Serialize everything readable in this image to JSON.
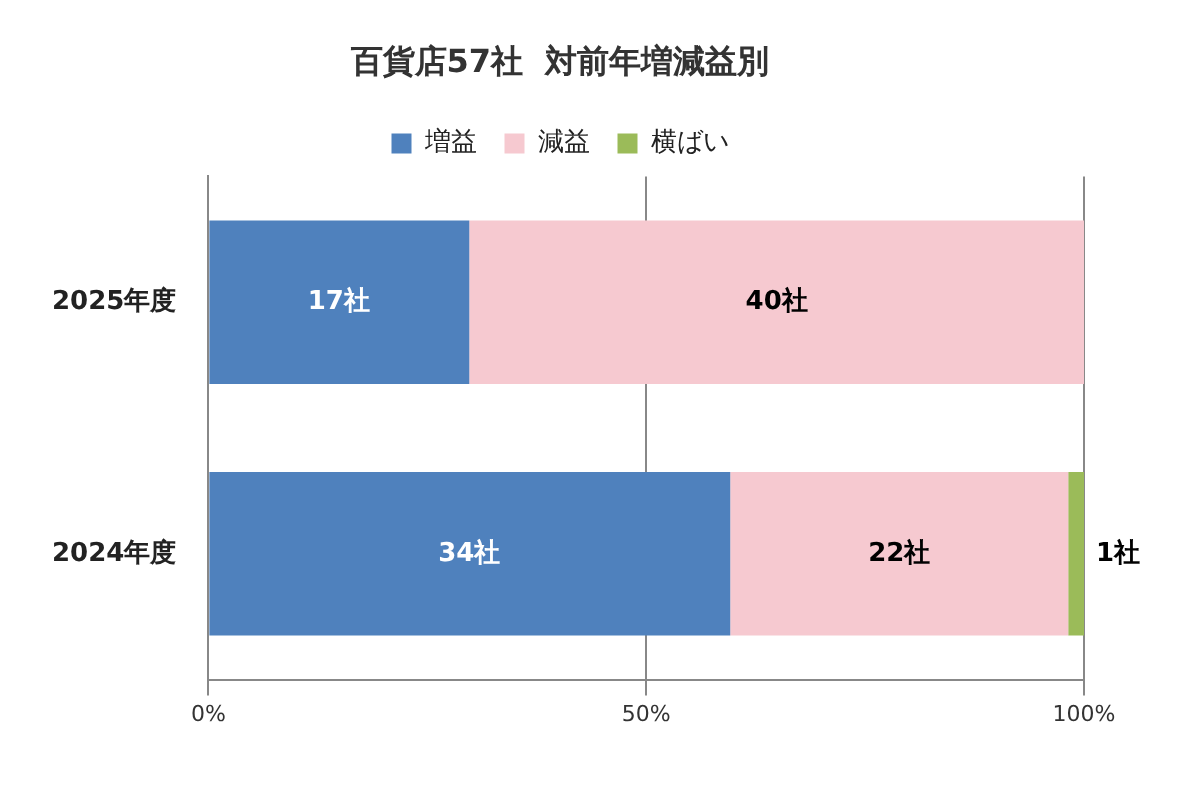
{
  "chart_data": {
    "type": "bar",
    "title": "百貨店57社  対前年増減益別",
    "orientation": "horizontal",
    "stacked": true,
    "categories": [
      "2025年度",
      "2024年度"
    ],
    "series": [
      {
        "name": "増益",
        "color": "#4f81bd",
        "values": [
          29.8,
          59.6
        ]
      },
      {
        "name": "減益",
        "color": "#f6c9d0",
        "values": [
          70.2,
          38.6
        ]
      },
      {
        "name": "横ばい",
        "color": "#9bbb59",
        "values": [
          0,
          1.8
        ]
      }
    ],
    "annotations": [
      "17社",
      "40社",
      "34社",
      "22社",
      "1社"
    ],
    "xlim": [
      0,
      100
    ],
    "xticks": [
      {
        "value": 0,
        "label": "0%"
      },
      {
        "value": 50,
        "label": "50%"
      },
      {
        "value": 100,
        "label": "100%"
      }
    ],
    "grid": "x",
    "legend": "top"
  }
}
